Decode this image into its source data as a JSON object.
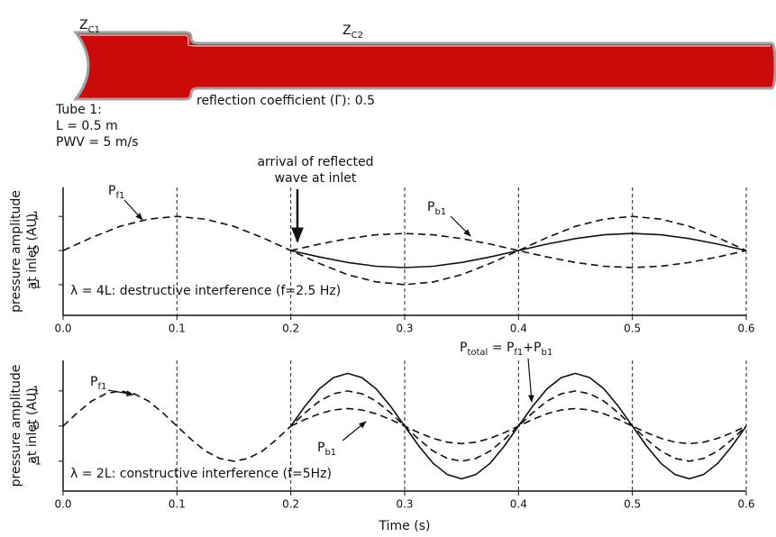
{
  "diagram": {
    "zc1": {
      "text": "Z",
      "sub": "C1"
    },
    "zc2": {
      "text": "Z",
      "sub": "C2"
    },
    "reflection": "reflection coefficient (Γ): 0.5",
    "tube_info": [
      "Tube 1:",
      "L = 0.5 m",
      "PWV = 5 m/s"
    ]
  },
  "chart_data": [
    {
      "type": "line",
      "ylabel": [
        "pressure amplitude",
        "at inlet (AU)"
      ],
      "xlim": [
        0,
        0.6
      ],
      "ylim": [
        -1.9,
        1.85
      ],
      "xticks": [
        {
          "value": 0,
          "label": "0.0"
        },
        0.1,
        0.2,
        0.3,
        0.4,
        0.5,
        0.6
      ],
      "yticks": [
        -1,
        0,
        1
      ],
      "grid": true,
      "x": [
        0,
        0.025,
        0.05,
        0.075,
        0.1,
        0.125,
        0.15,
        0.175,
        0.2,
        0.225,
        0.25,
        0.275,
        0.3,
        0.325,
        0.35,
        0.375,
        0.4,
        0.425,
        0.45,
        0.475,
        0.5,
        0.525,
        0.55,
        0.575,
        0.6
      ],
      "series": [
        {
          "color": "#111111",
          "style": "dashed",
          "values": [
            0,
            0.38,
            0.71,
            0.92,
            1,
            0.92,
            0.71,
            0.38,
            0,
            -0.38,
            -0.71,
            -0.92,
            -1,
            -0.92,
            -0.71,
            -0.38,
            0,
            0.38,
            0.71,
            0.92,
            1,
            0.92,
            0.71,
            0.38,
            0
          ]
        },
        {
          "color": "#111111",
          "style": "dashed",
          "values": [
            null,
            null,
            null,
            null,
            null,
            null,
            null,
            null,
            0,
            0.19,
            0.35,
            0.46,
            0.5,
            0.46,
            0.35,
            0.19,
            0,
            -0.19,
            -0.35,
            -0.46,
            -0.5,
            -0.46,
            -0.35,
            -0.19,
            0
          ]
        },
        {
          "color": "#111111",
          "style": "solid",
          "values": [
            null,
            null,
            null,
            null,
            null,
            null,
            null,
            null,
            0,
            -0.19,
            -0.35,
            -0.46,
            -0.5,
            -0.46,
            -0.35,
            -0.19,
            0,
            0.19,
            0.35,
            0.46,
            0.5,
            0.46,
            0.35,
            0.19,
            0
          ]
        }
      ],
      "annotations": [
        {
          "parts": [
            "P",
            {
              "sub": "f1"
            }
          ]
        },
        {
          "lines": [
            "arrival of reflected",
            "wave at inlet"
          ]
        },
        {
          "parts": [
            "P",
            {
              "sub": "b1"
            }
          ]
        },
        {
          "text": "λ = 4L: destructive interference (f=2.5 Hz)"
        }
      ]
    },
    {
      "type": "line",
      "ylabel": [
        "pressure amplitude",
        "at inlet (AU)"
      ],
      "xlabel": "Time (s)",
      "xlim": [
        0,
        0.6
      ],
      "ylim": [
        -1.85,
        1.87
      ],
      "xticks": [
        {
          "value": 0,
          "label": "0.0"
        },
        0.1,
        0.2,
        0.3,
        0.4,
        0.5,
        0.6
      ],
      "yticks": [
        -1,
        0,
        1
      ],
      "grid": true,
      "x": [
        0,
        0.0125,
        0.025,
        0.0375,
        0.05,
        0.0625,
        0.075,
        0.0875,
        0.1,
        0.1125,
        0.125,
        0.1375,
        0.15,
        0.1625,
        0.175,
        0.1875,
        0.2,
        0.2125,
        0.225,
        0.2375,
        0.25,
        0.2625,
        0.275,
        0.2875,
        0.3,
        0.3125,
        0.325,
        0.3375,
        0.35,
        0.3625,
        0.375,
        0.3875,
        0.4,
        0.4125,
        0.425,
        0.4375,
        0.45,
        0.4625,
        0.475,
        0.4875,
        0.5,
        0.5125,
        0.525,
        0.5375,
        0.55,
        0.5625,
        0.575,
        0.5875,
        0.6
      ],
      "series": [
        {
          "color": "#111111",
          "style": "dashed",
          "values": [
            0,
            0.38,
            0.71,
            0.92,
            1,
            0.92,
            0.71,
            0.38,
            0,
            -0.38,
            -0.71,
            -0.92,
            -1,
            -0.92,
            -0.71,
            -0.38,
            0,
            0.38,
            0.71,
            0.92,
            1,
            0.92,
            0.71,
            0.38,
            0,
            -0.38,
            -0.71,
            -0.92,
            -1,
            -0.92,
            -0.71,
            -0.38,
            0,
            0.38,
            0.71,
            0.92,
            1,
            0.92,
            0.71,
            0.38,
            0,
            -0.38,
            -0.71,
            -0.92,
            -1,
            -0.92,
            -0.71,
            -0.38,
            0
          ]
        },
        {
          "color": "#111111",
          "style": "dashed",
          "values": [
            null,
            null,
            null,
            null,
            null,
            null,
            null,
            null,
            null,
            null,
            null,
            null,
            null,
            null,
            null,
            null,
            0,
            0.19,
            0.35,
            0.46,
            0.5,
            0.46,
            0.35,
            0.19,
            0,
            -0.19,
            -0.35,
            -0.46,
            -0.5,
            -0.46,
            -0.35,
            -0.19,
            0,
            0.19,
            0.35,
            0.46,
            0.5,
            0.46,
            0.35,
            0.19,
            0,
            -0.19,
            -0.35,
            -0.46,
            -0.5,
            -0.46,
            -0.35,
            -0.19,
            0
          ]
        },
        {
          "color": "#111111",
          "style": "solid",
          "values": [
            null,
            null,
            null,
            null,
            null,
            null,
            null,
            null,
            null,
            null,
            null,
            null,
            null,
            null,
            null,
            null,
            0,
            0.57,
            1.06,
            1.38,
            1.5,
            1.38,
            1.06,
            0.57,
            0,
            -0.57,
            -1.06,
            -1.38,
            -1.5,
            -1.38,
            -1.06,
            -0.57,
            0,
            0.57,
            1.06,
            1.38,
            1.5,
            1.38,
            1.06,
            0.57,
            0,
            -0.57,
            -1.06,
            -1.38,
            -1.5,
            -1.38,
            -1.06,
            -0.57,
            0
          ]
        }
      ],
      "annotations": [
        {
          "parts": [
            "P",
            {
              "sub": "f1"
            }
          ]
        },
        {
          "parts": [
            "P",
            {
              "sub": "total"
            },
            " = P",
            {
              "sub": "f1"
            },
            "+P",
            {
              "sub": "b1"
            }
          ]
        },
        {
          "parts": [
            "P",
            {
              "sub": "b1"
            }
          ]
        },
        {
          "text": "λ = 2L: constructive interference (f=5Hz)"
        }
      ]
    }
  ]
}
